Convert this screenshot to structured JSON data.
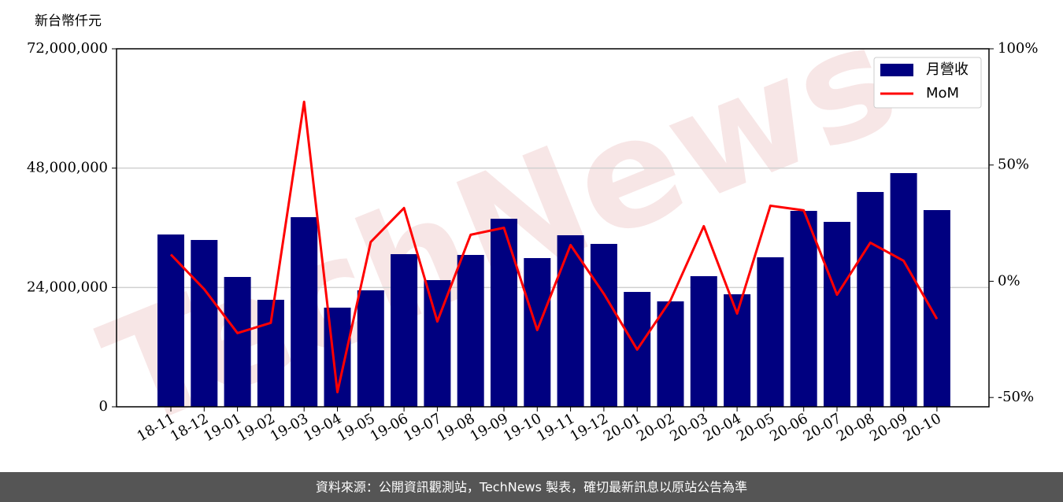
{
  "chart_data": {
    "type": "bar_line",
    "y_axis_label": "新台幣仟元",
    "watermark": "TechNews",
    "footer": "資料來源：公開資訊觀測站，TechNews 製表，確切最新訊息以原站公告為準",
    "categories": [
      "18-11",
      "18-12",
      "19-01",
      "19-02",
      "19-03",
      "19-04",
      "19-05",
      "19-06",
      "19-07",
      "19-08",
      "19-09",
      "19-10",
      "19-11",
      "19-12",
      "20-01",
      "20-02",
      "20-03",
      "20-04",
      "20-05",
      "20-06",
      "20-07",
      "20-08",
      "20-09",
      "20-10"
    ],
    "series": [
      {
        "name": "月營收",
        "type": "bar",
        "color": "#000080",
        "values": [
          34650000,
          33550000,
          26110000,
          21520000,
          38140000,
          19940000,
          23420000,
          30700000,
          25480000,
          30540000,
          37820000,
          29910000,
          34500000,
          32760000,
          23100000,
          21200000,
          26270000,
          22630000,
          30070000,
          39400000,
          37190000,
          43200000,
          47000000,
          39560000
        ]
      },
      {
        "name": "MoM",
        "type": "line",
        "axis": "y2",
        "color": "#ff0000",
        "values": [
          11.5,
          -3.4,
          -22.3,
          -17.9,
          77.2,
          -47.7,
          16.9,
          31.5,
          -17.3,
          20.0,
          23.0,
          -21.0,
          15.6,
          -5.4,
          -29.4,
          -8.2,
          23.7,
          -13.9,
          32.5,
          30.5,
          -5.8,
          16.6,
          8.8,
          -16.2
        ]
      }
    ],
    "ylim": [
      0,
      72000000
    ],
    "yticks": [
      0,
      {
        "value": 24000000,
        "label": "24,000,000"
      },
      {
        "value": 48000000,
        "label": "48,000,000"
      },
      {
        "value": 72000000,
        "label": "72,000,000"
      }
    ],
    "y2lim": [
      -54,
      100
    ],
    "y2ticks": [
      {
        "value": -50,
        "label": "-50%"
      },
      {
        "value": 0,
        "label": "0%"
      },
      {
        "value": 50,
        "label": "50%"
      },
      {
        "value": 100,
        "label": "100%"
      }
    ],
    "grid": true,
    "legend": "upper right"
  }
}
